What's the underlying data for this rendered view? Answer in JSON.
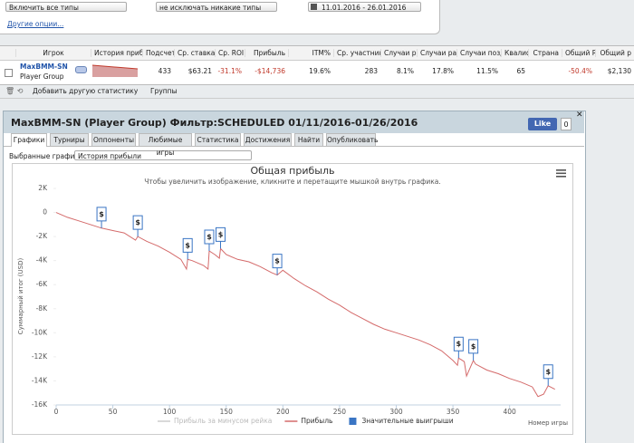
{
  "filters": {
    "include": "Включить все типы",
    "exclude": "не исключать никакие типы",
    "date_range": "11.01.2016 - 26.01.2016",
    "more": "Другие опции..."
  },
  "table": {
    "columns": [
      "Игрок",
      "История прибы",
      "Подсчет",
      "Ср. ставка",
      "Ср. ROI",
      "Прибыль",
      "ITM%",
      "Ср. участник",
      "Случаи р",
      "Случаи ран",
      "Случаи позд",
      "Квалиф",
      "Страна",
      "Общий R",
      "Общий р"
    ],
    "rows": [
      {
        "player": "MaxBMM-SN",
        "group": "Player Group",
        "cells": [
          null,
          "433",
          "$63.21",
          "-31.1%",
          "-$14,736",
          "19.6%",
          "283",
          "8.1%",
          "17.8%",
          "11.5%",
          "65",
          null,
          "-50.4%",
          "$2,130"
        ]
      }
    ]
  },
  "toolbar": {
    "add": "Добавить другую статистику",
    "groups": "Группы"
  },
  "dialog": {
    "title": "MaxBMM-SN (Player Group) Фильтр:SCHEDULED 01/11/2016-01/26/2016",
    "like": "Like",
    "like_count": "0",
    "tabs": [
      "Графики",
      "Турниры",
      "Оппоненты",
      "Любимые игры",
      "Статистика",
      "Достижения",
      "Найти",
      "Опубликовать"
    ],
    "active_tab": 0,
    "selected_label": "Выбранные графики:",
    "selected_value": "История прибыли"
  },
  "chart_data": {
    "type": "line",
    "title": "Общая прибыль",
    "subtitle": "Чтобы увеличить изображение, кликните и перетащите мышкой внутрь графика.",
    "x_label": "Номер игры",
    "y_label": "Суммарный итог (USD)",
    "grid": false,
    "xlim": [
      0,
      445
    ],
    "xticks": [
      0,
      50,
      100,
      150,
      200,
      250,
      300,
      350,
      400
    ],
    "ylim": [
      -16000,
      2000
    ],
    "yticks": [
      {
        "value": 2000,
        "label": "2K"
      },
      0,
      {
        "value": -2000,
        "label": "-2K"
      },
      {
        "value": -4000,
        "label": "-4K"
      },
      {
        "value": -6000,
        "label": "-6K"
      },
      {
        "value": -8000,
        "label": "-8K"
      },
      {
        "value": -10000,
        "label": "-10K"
      },
      {
        "value": -12000,
        "label": "-12K"
      },
      {
        "value": -14000,
        "label": "-14K"
      },
      {
        "value": -16000,
        "label": "-16K"
      }
    ],
    "series": [
      {
        "name": "Прибыль за минусом рейка",
        "color": "#cccccc",
        "visible": false
      },
      {
        "name": "Прибыль",
        "color": "#d46a6a",
        "visible": true,
        "x": [
          0,
          10,
          20,
          30,
          40,
          50,
          60,
          70,
          72,
          80,
          90,
          100,
          110,
          115,
          116,
          120,
          130,
          134,
          135,
          140,
          144,
          145,
          150,
          160,
          170,
          180,
          190,
          195,
          200,
          210,
          220,
          230,
          240,
          250,
          260,
          270,
          280,
          290,
          300,
          310,
          320,
          330,
          340,
          350,
          354,
          355,
          360,
          362,
          368,
          370,
          380,
          390,
          400,
          410,
          420,
          425,
          430,
          434,
          440
        ],
        "values": [
          0,
          -400,
          -700,
          -1000,
          -1300,
          -1500,
          -1700,
          -2300,
          -2000,
          -2400,
          -2800,
          -3300,
          -3900,
          -4700,
          -3900,
          -4000,
          -4400,
          -4700,
          -3200,
          -3500,
          -3800,
          -3000,
          -3500,
          -3900,
          -4100,
          -4500,
          -5000,
          -5200,
          -4800,
          -5500,
          -6100,
          -6600,
          -7200,
          -7700,
          -8300,
          -8800,
          -9300,
          -9700,
          -10000,
          -10300,
          -10600,
          -11000,
          -11500,
          -12300,
          -12700,
          -12100,
          -12400,
          -13600,
          -12300,
          -12600,
          -13100,
          -13400,
          -13800,
          -14100,
          -14500,
          -15300,
          -15100,
          -14400,
          -14700
        ]
      },
      {
        "name": "Значительные выигрыши",
        "color": "#3a75c4",
        "visible": true,
        "marker_label": "$",
        "x": [
          40,
          72,
          116,
          135,
          145,
          195,
          355,
          368,
          434
        ],
        "values": [
          -1300,
          -2000,
          -3900,
          -3200,
          -3000,
          -5200,
          -12100,
          -12300,
          -14400
        ]
      }
    ]
  }
}
